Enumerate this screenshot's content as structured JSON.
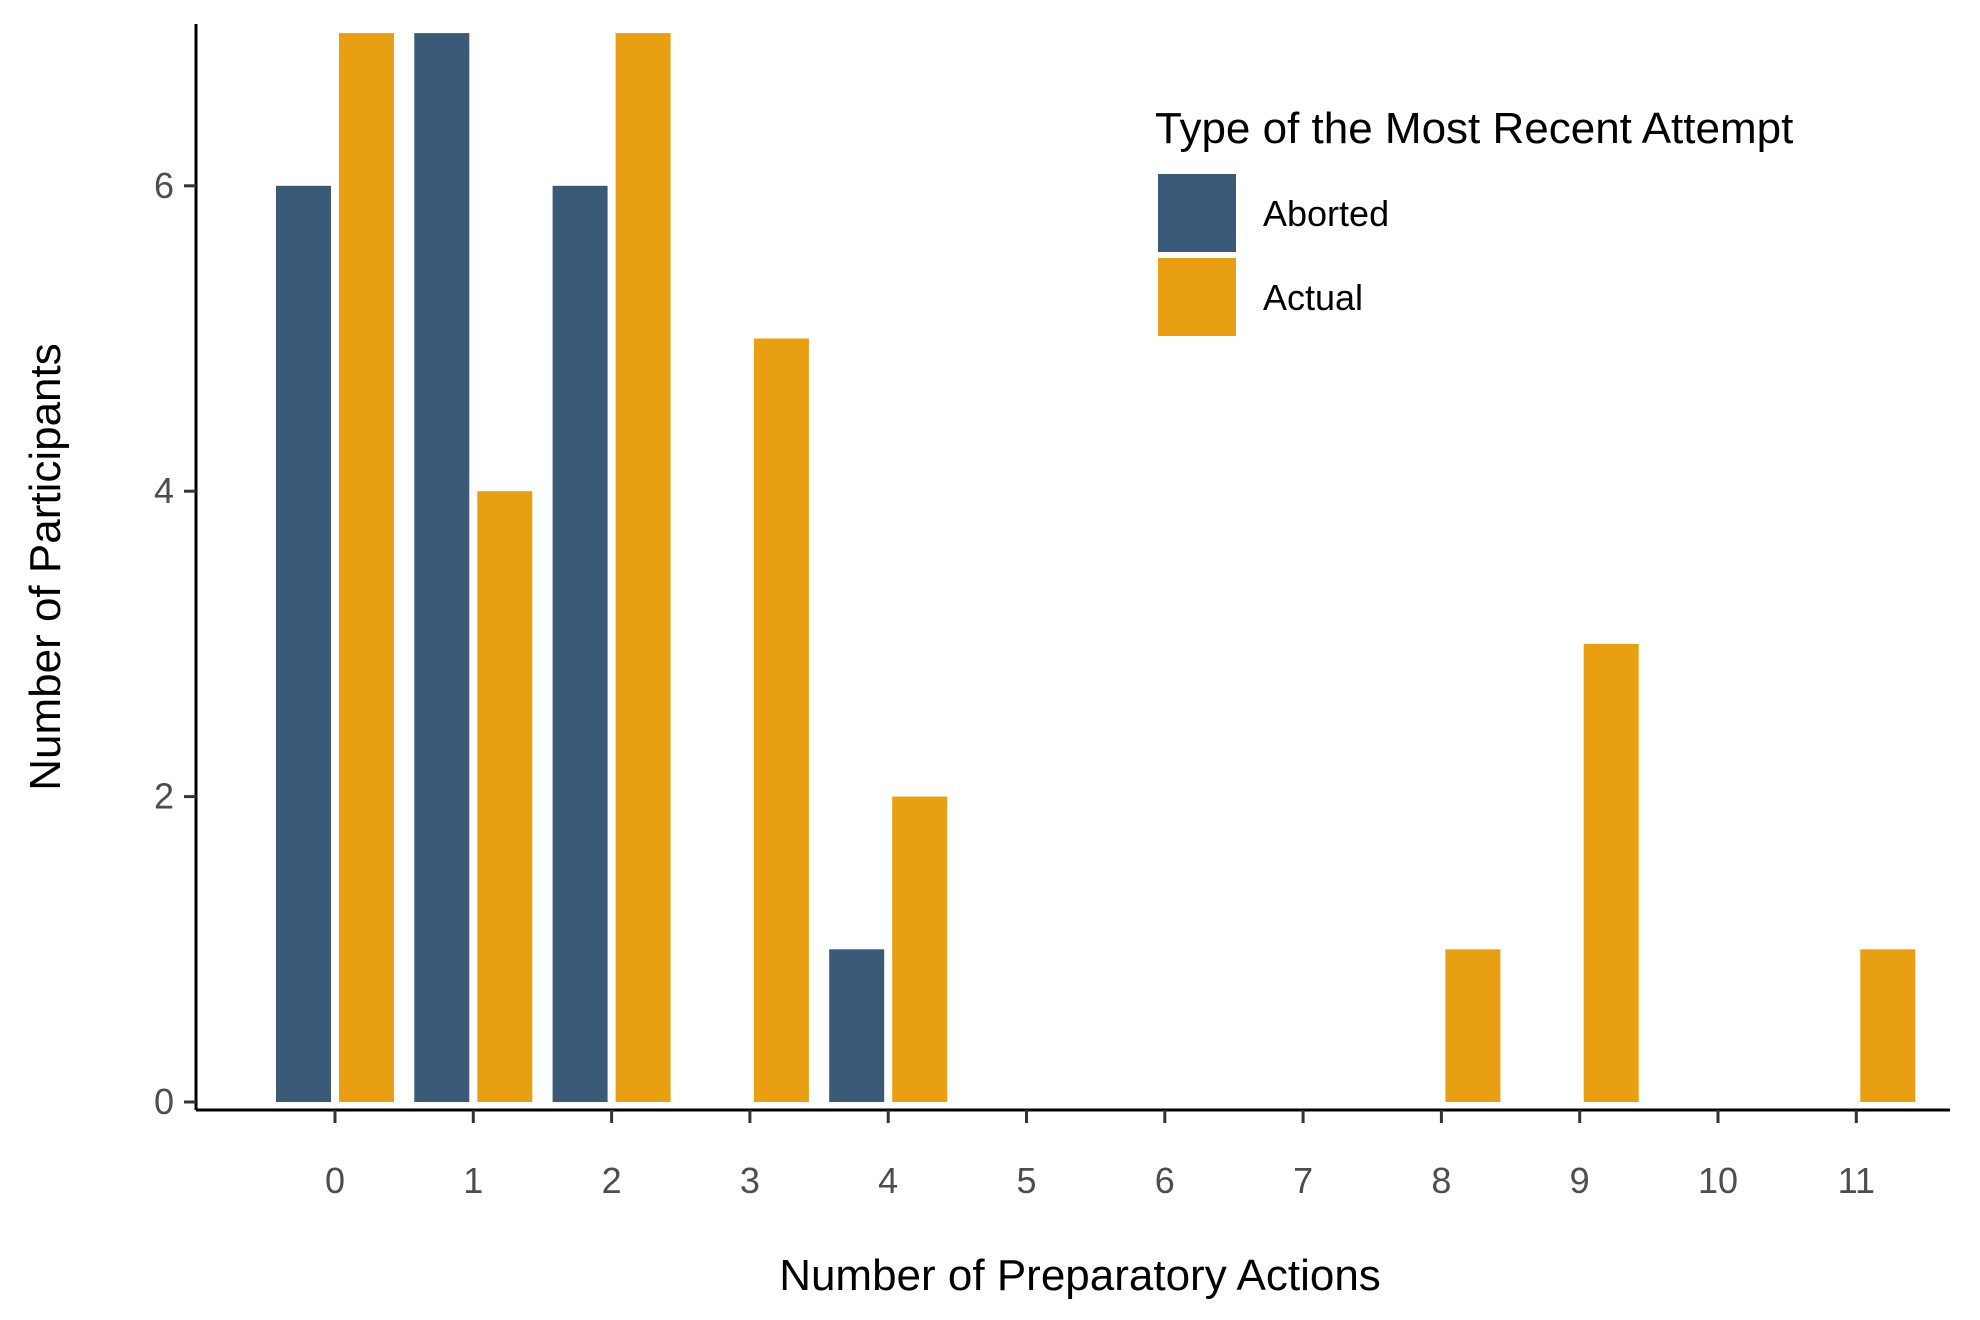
{
  "chart_data": {
    "type": "bar",
    "title": "",
    "xlabel": "Number of Preparatory Actions",
    "ylabel": "Number of Participants",
    "categories": [
      "0",
      "1",
      "2",
      "3",
      "4",
      "5",
      "6",
      "7",
      "8",
      "9",
      "10",
      "11"
    ],
    "ylim": [
      0,
      7
    ],
    "yticks": [
      0,
      2,
      4,
      6
    ],
    "grid": false,
    "legend": {
      "title": "Type of the Most Recent Attempt",
      "position": "top-right"
    },
    "series": [
      {
        "name": "Aborted",
        "color": "#3a5a78",
        "values": [
          6,
          7,
          6,
          null,
          1,
          null,
          null,
          null,
          null,
          null,
          null,
          null
        ]
      },
      {
        "name": "Actual",
        "color": "#e89f12",
        "values": [
          7,
          4,
          7,
          5,
          2,
          null,
          null,
          null,
          1,
          3,
          null,
          1
        ]
      }
    ]
  }
}
